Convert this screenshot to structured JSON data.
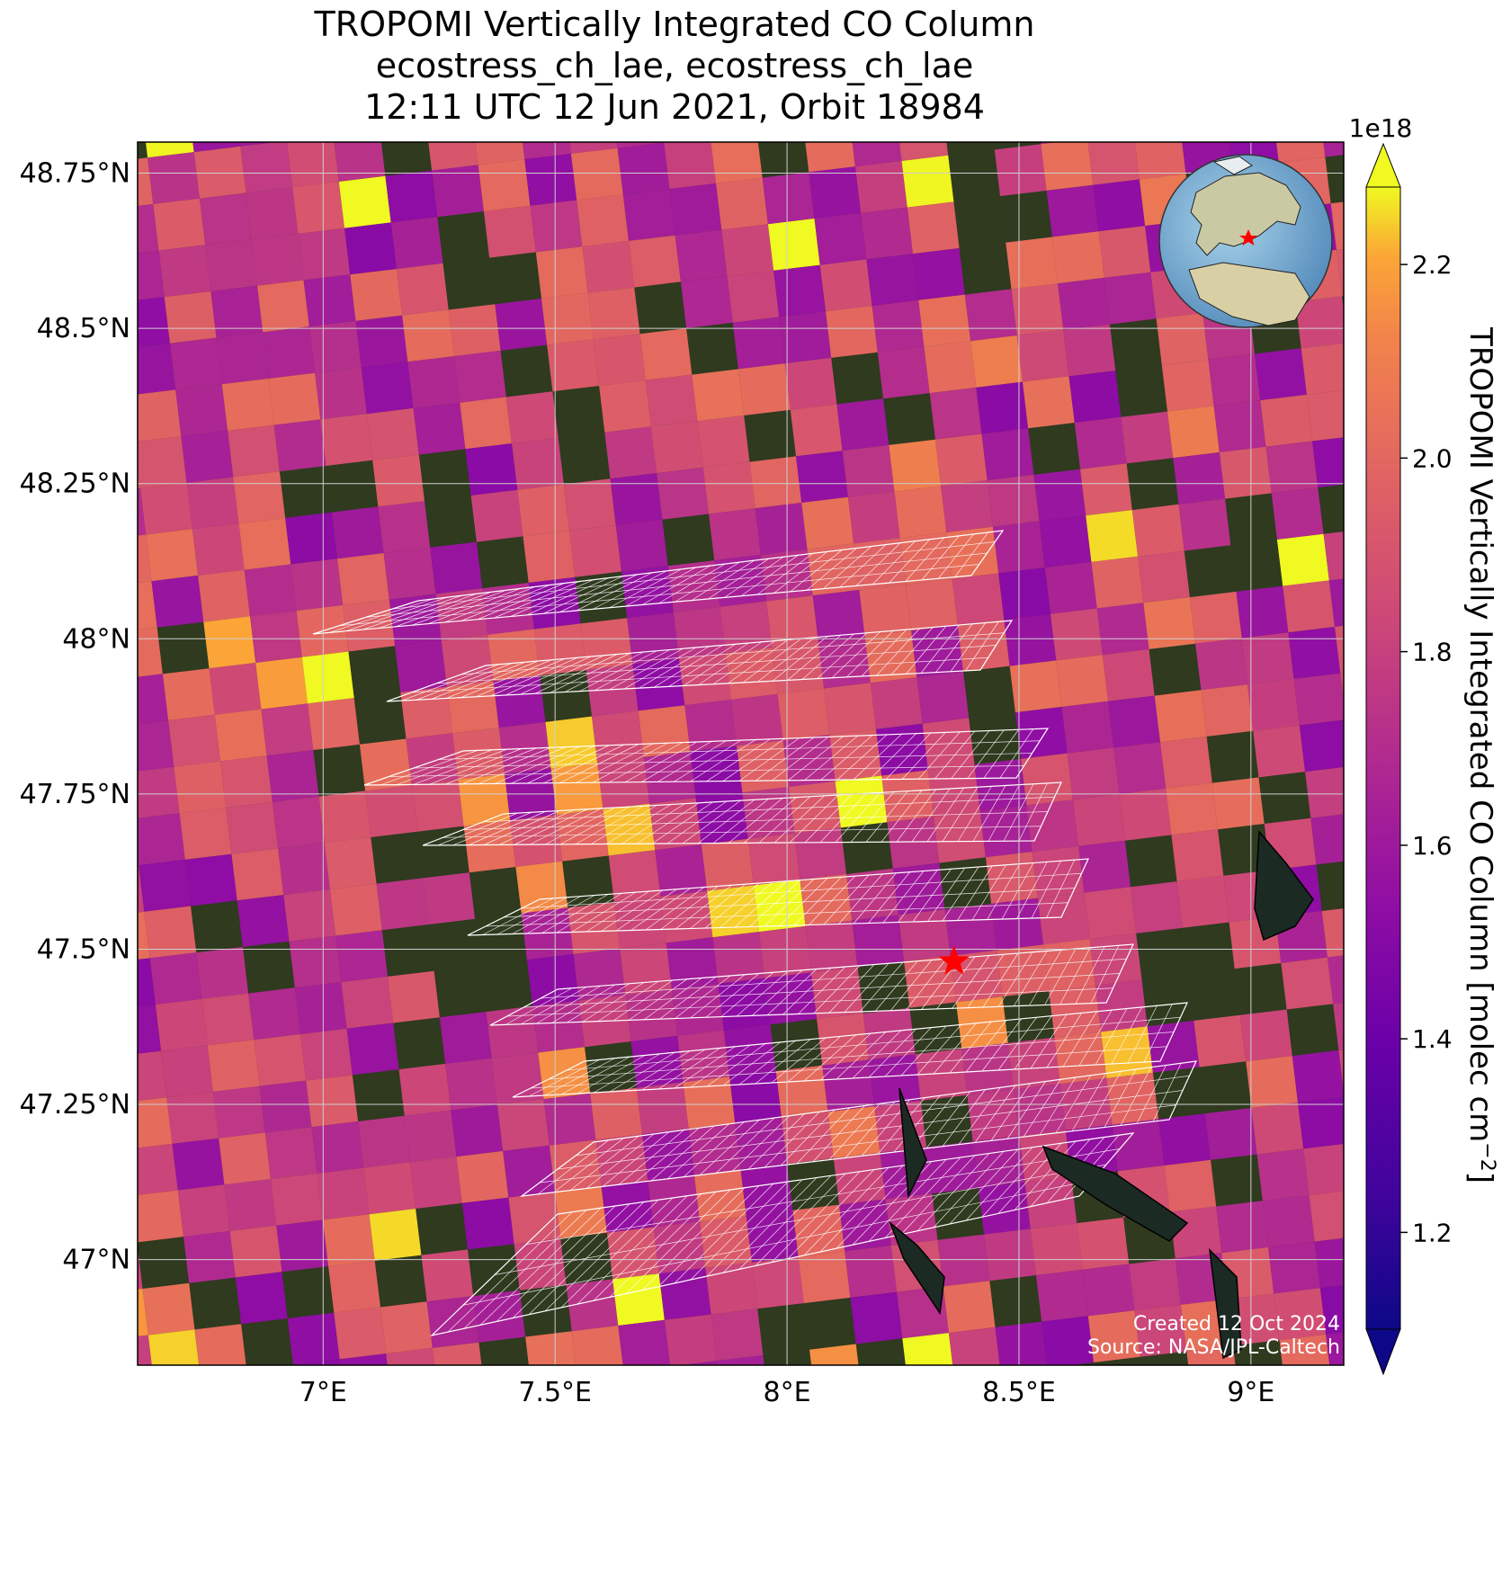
{
  "title": {
    "line1": "TROPOMI Vertically Integrated CO Column",
    "line2": "ecostress_ch_lae, ecostress_ch_lae",
    "line3": "12:11 UTC 12 Jun 2021, Orbit 18984"
  },
  "map": {
    "extent": {
      "lon_min": 6.6,
      "lon_max": 9.2,
      "lat_min": 46.83,
      "lat_max": 48.8
    },
    "lat_ticks": [
      {
        "value": 48.75,
        "label": "48.75°N"
      },
      {
        "value": 48.5,
        "label": "48.5°N"
      },
      {
        "value": 48.25,
        "label": "48.25°N"
      },
      {
        "value": 48.0,
        "label": "48°N"
      },
      {
        "value": 47.75,
        "label": "47.75°N"
      },
      {
        "value": 47.5,
        "label": "47.5°N"
      },
      {
        "value": 47.25,
        "label": "47.25°N"
      },
      {
        "value": 47.0,
        "label": "47°N"
      }
    ],
    "lon_ticks": [
      {
        "value": 7.0,
        "label": "7°E"
      },
      {
        "value": 7.5,
        "label": "7.5°E"
      },
      {
        "value": 8.0,
        "label": "8°E"
      },
      {
        "value": 8.5,
        "label": "8.5°E"
      },
      {
        "value": 9.0,
        "label": "9°E"
      }
    ],
    "site_marker": {
      "lon": 8.36,
      "lat": 47.48,
      "symbol": "red-star"
    },
    "gridlines": true,
    "basemap": "satellite-imagery",
    "colors": {
      "basemap": "#2f3a1f",
      "site_marker": "#ff0000",
      "gridline": "#cfcfcf",
      "footprint": "#ffffff"
    }
  },
  "colorbar": {
    "label": "TROPOMI Vertically Integrated CO Column [molec cm",
    "label_superscript": "−2",
    "label_close": "]",
    "scale_text": "1e18",
    "range": [
      1.1,
      2.28
    ],
    "colormap": "plasma",
    "extend": "both",
    "ticks": [
      {
        "value": 1.2,
        "label": "1.2"
      },
      {
        "value": 1.4,
        "label": "1.4"
      },
      {
        "value": 1.6,
        "label": "1.6"
      },
      {
        "value": 1.8,
        "label": "1.8"
      },
      {
        "value": 2.0,
        "label": "2.0"
      },
      {
        "value": 2.2,
        "label": "2.2"
      }
    ]
  },
  "inset_globe": {
    "center": "europe",
    "marker": "red-star"
  },
  "footer": {
    "created": "Created 12 Oct 2024",
    "source": "Source: NASA/JPL-Caltech"
  }
}
